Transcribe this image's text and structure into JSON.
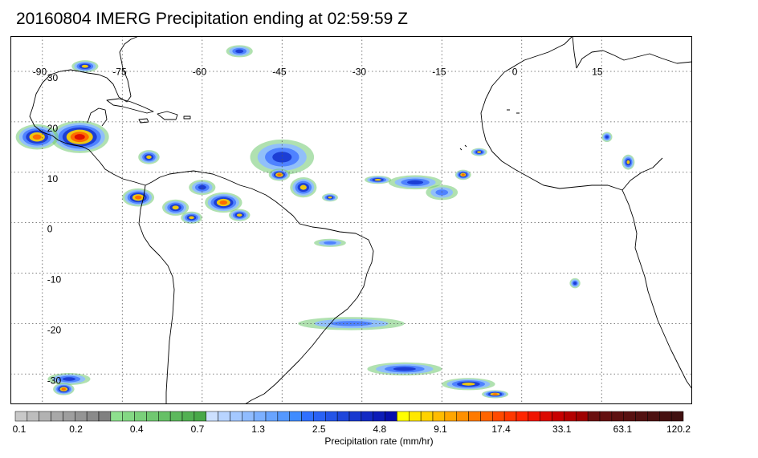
{
  "title": "20160804 IMERG Precipitation ending at 02:59:59 Z",
  "map": {
    "lon_range": [
      -96,
      32
    ],
    "lat_range": [
      -36,
      37
    ],
    "lon_ticks": [
      -90,
      -75,
      -60,
      -45,
      -30,
      -15,
      0,
      15
    ],
    "lat_ticks": [
      30,
      20,
      10,
      0,
      -10,
      -20,
      -30
    ],
    "lon_tick_labels": [
      "-90",
      "-75",
      "-60",
      "-45",
      "-30",
      "-15",
      "0",
      "15"
    ],
    "lat_tick_labels": [
      "30",
      "20",
      "10",
      "0",
      "-10",
      "-20",
      "-30"
    ],
    "grid": true,
    "colors": {
      "coast": "#000000",
      "grid": "#555555",
      "frame": "#000000"
    }
  },
  "colorbar": {
    "title": "Precipitation rate (mm/hr)",
    "tick_labels": [
      "0.1",
      "0.2",
      "0.4",
      "0.7",
      "1.3",
      "2.5",
      "4.8",
      "9.1",
      "17.4",
      "33.1",
      "63.1",
      "120.2"
    ],
    "groups": [
      [
        "#c8c8c8",
        "#bdbdbd",
        "#b2b2b2",
        "#a8a8a8",
        "#9e9e9e",
        "#949494",
        "#8a8a8a",
        "#808080"
      ],
      [
        "#8ee08e",
        "#84d884",
        "#7ad07a",
        "#70c870",
        "#66c066",
        "#5cb85c",
        "#52b052",
        "#48a848"
      ],
      [
        "#cce0ff",
        "#b8d4ff",
        "#a4c8ff",
        "#90bcff",
        "#7cb0ff",
        "#68a4ff",
        "#5498ff",
        "#408cff"
      ],
      [
        "#3070ff",
        "#2a62f4",
        "#2454e8",
        "#1e46dc",
        "#1838d0",
        "#122ac4",
        "#0c1cb8",
        "#060eac"
      ],
      [
        "#ffff00",
        "#ffe800",
        "#ffd200",
        "#ffbc00",
        "#ffa600",
        "#ff9000",
        "#ff7a00",
        "#ff6400"
      ],
      [
        "#ff4a00",
        "#ff3800",
        "#ff2600",
        "#f01400",
        "#dc0a00",
        "#c80000",
        "#b40000",
        "#a00000"
      ],
      [
        "#6a1010",
        "#641010",
        "#5e1010",
        "#581010",
        "#521010",
        "#4c1010",
        "#461010",
        "#401010"
      ]
    ]
  },
  "precip_systems": [
    {
      "lon": -83,
      "lat": 17,
      "rx": 5.5,
      "ry": 3.2,
      "level": 6
    },
    {
      "lon": -91,
      "lat": 17,
      "rx": 4,
      "ry": 2.5,
      "level": 5
    },
    {
      "lon": -70,
      "lat": 13,
      "rx": 2,
      "ry": 1.4,
      "level": 4
    },
    {
      "lon": -72,
      "lat": 5,
      "rx": 3,
      "ry": 1.8,
      "level": 5
    },
    {
      "lon": -65,
      "lat": 3,
      "rx": 2.5,
      "ry": 1.6,
      "level": 4
    },
    {
      "lon": -62,
      "lat": 1,
      "rx": 2,
      "ry": 1.2,
      "level": 4
    },
    {
      "lon": -56,
      "lat": 4,
      "rx": 3.5,
      "ry": 2,
      "level": 5
    },
    {
      "lon": -53,
      "lat": 1.5,
      "rx": 2,
      "ry": 1.2,
      "level": 4
    },
    {
      "lon": -60,
      "lat": 7,
      "rx": 2.5,
      "ry": 1.5,
      "level": 3
    },
    {
      "lon": -45,
      "lat": 13,
      "rx": 6,
      "ry": 3.5,
      "level": 3
    },
    {
      "lon": -45.5,
      "lat": 9.5,
      "rx": 2,
      "ry": 1.2,
      "level": 5
    },
    {
      "lon": -41,
      "lat": 7,
      "rx": 2.5,
      "ry": 2,
      "level": 4
    },
    {
      "lon": -36,
      "lat": 5,
      "rx": 1.5,
      "ry": 0.8,
      "level": 4
    },
    {
      "lon": -27,
      "lat": 8.5,
      "rx": 2.5,
      "ry": 0.8,
      "level": 4
    },
    {
      "lon": -20,
      "lat": 8,
      "rx": 5,
      "ry": 1.4,
      "level": 3
    },
    {
      "lon": -15,
      "lat": 6,
      "rx": 3,
      "ry": 1.5,
      "level": 2
    },
    {
      "lon": -11,
      "lat": 9.5,
      "rx": 1.5,
      "ry": 1,
      "level": 5
    },
    {
      "lon": -8,
      "lat": 14,
      "rx": 1.5,
      "ry": 0.8,
      "level": 4
    },
    {
      "lon": 16,
      "lat": 17,
      "rx": 1,
      "ry": 1,
      "level": 3
    },
    {
      "lon": 20,
      "lat": 12,
      "rx": 1.2,
      "ry": 1.5,
      "level": 4
    },
    {
      "lon": -53,
      "lat": 34,
      "rx": 2.5,
      "ry": 1.2,
      "level": 3
    },
    {
      "lon": -82,
      "lat": 31,
      "rx": 2.5,
      "ry": 1.2,
      "level": 4
    },
    {
      "lon": -85,
      "lat": -31,
      "rx": 4,
      "ry": 1.2,
      "level": 3
    },
    {
      "lon": -86,
      "lat": -33,
      "rx": 2,
      "ry": 1.2,
      "level": 5
    },
    {
      "lon": -36,
      "lat": -4,
      "rx": 3,
      "ry": 0.8,
      "level": 2
    },
    {
      "lon": -32,
      "lat": -20,
      "rx": 10,
      "ry": 1.3,
      "level": 2
    },
    {
      "lon": -22,
      "lat": -29,
      "rx": 7,
      "ry": 1.3,
      "level": 3
    },
    {
      "lon": -10,
      "lat": -32,
      "rx": 5,
      "ry": 1.2,
      "level": 4
    },
    {
      "lon": -5,
      "lat": -34,
      "rx": 2.5,
      "ry": 0.8,
      "level": 5
    },
    {
      "lon": 10,
      "lat": -12,
      "rx": 1,
      "ry": 1,
      "level": 3
    }
  ]
}
